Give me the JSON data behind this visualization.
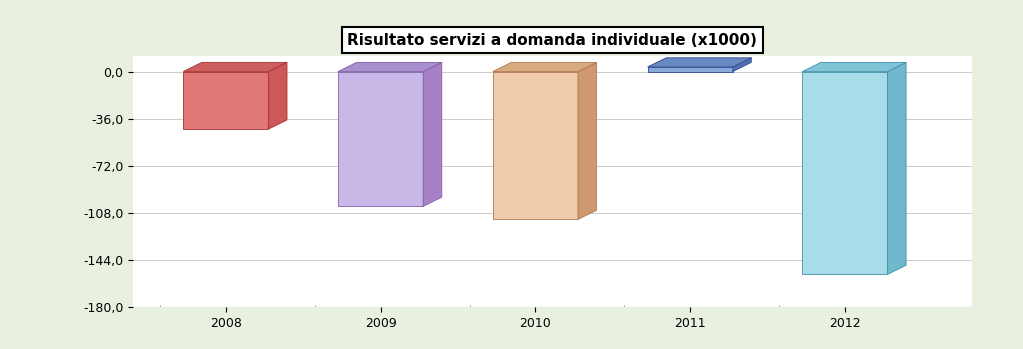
{
  "title": "Risultato servizi a domanda individuale (x1000)",
  "categories": [
    "2008",
    "2009",
    "2010",
    "2011",
    "2012"
  ],
  "values": [
    -44.0,
    -103.0,
    -113.0,
    3.5,
    -155.0
  ],
  "bar_colors_face": [
    "#e07878",
    "#c8b8e8",
    "#f0ccaa",
    "#88aad8",
    "#a8dce8"
  ],
  "bar_colors_top": [
    "#cc6060",
    "#a890d0",
    "#d8aa80",
    "#6888c0",
    "#80c4d8"
  ],
  "bar_colors_side": [
    "#cc5858",
    "#a880c8",
    "#d09870",
    "#5070b8",
    "#70b8cc"
  ],
  "bar_colors_edge": [
    "#aa3030",
    "#8060a8",
    "#b07850",
    "#304890",
    "#4090a8"
  ],
  "ylim": [
    -180,
    12
  ],
  "yticks": [
    0.0,
    -36.0,
    -72.0,
    -108.0,
    -144.0,
    -180.0
  ],
  "background_color": "#e8f0e0",
  "plot_bg_color": "#ffffff",
  "wall_color": "#d0d0d0",
  "floor_color": "#909090",
  "title_fontsize": 11,
  "tick_fontsize": 9,
  "bar_width": 0.55,
  "ox": 0.12,
  "oy": 7.0
}
